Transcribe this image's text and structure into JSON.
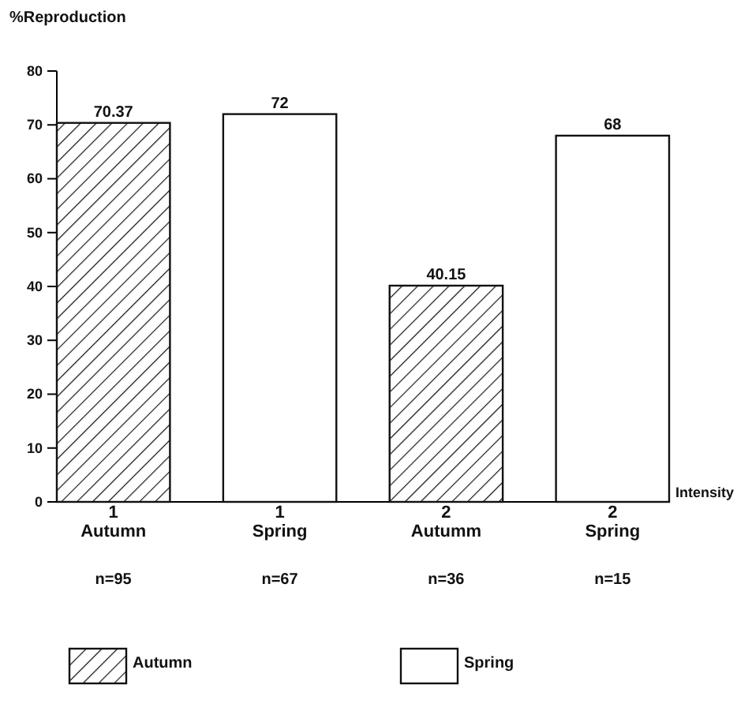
{
  "chart_data": {
    "type": "bar",
    "ylabel": "%Reproduction",
    "xlabel": "Intensity",
    "categories": [
      "1\nAutumn",
      "1\nSpring",
      "2\nAutumm",
      "2\nSpring"
    ],
    "series": [
      {
        "name": "Autumn",
        "color": "#111111",
        "values": [
          70.37,
          null,
          40.15,
          null
        ]
      },
      {
        "name": "Spring",
        "color": "#ffffff",
        "values": [
          null,
          72,
          null,
          68
        ]
      }
    ],
    "ylim": [
      0,
      80
    ],
    "yticks": [
      0,
      10,
      20,
      30,
      40,
      50,
      60,
      70,
      80
    ],
    "data_labels": true,
    "legend": "bottom",
    "annotations": [
      "n=95",
      "n=67",
      "n=36",
      "n=15"
    ]
  }
}
